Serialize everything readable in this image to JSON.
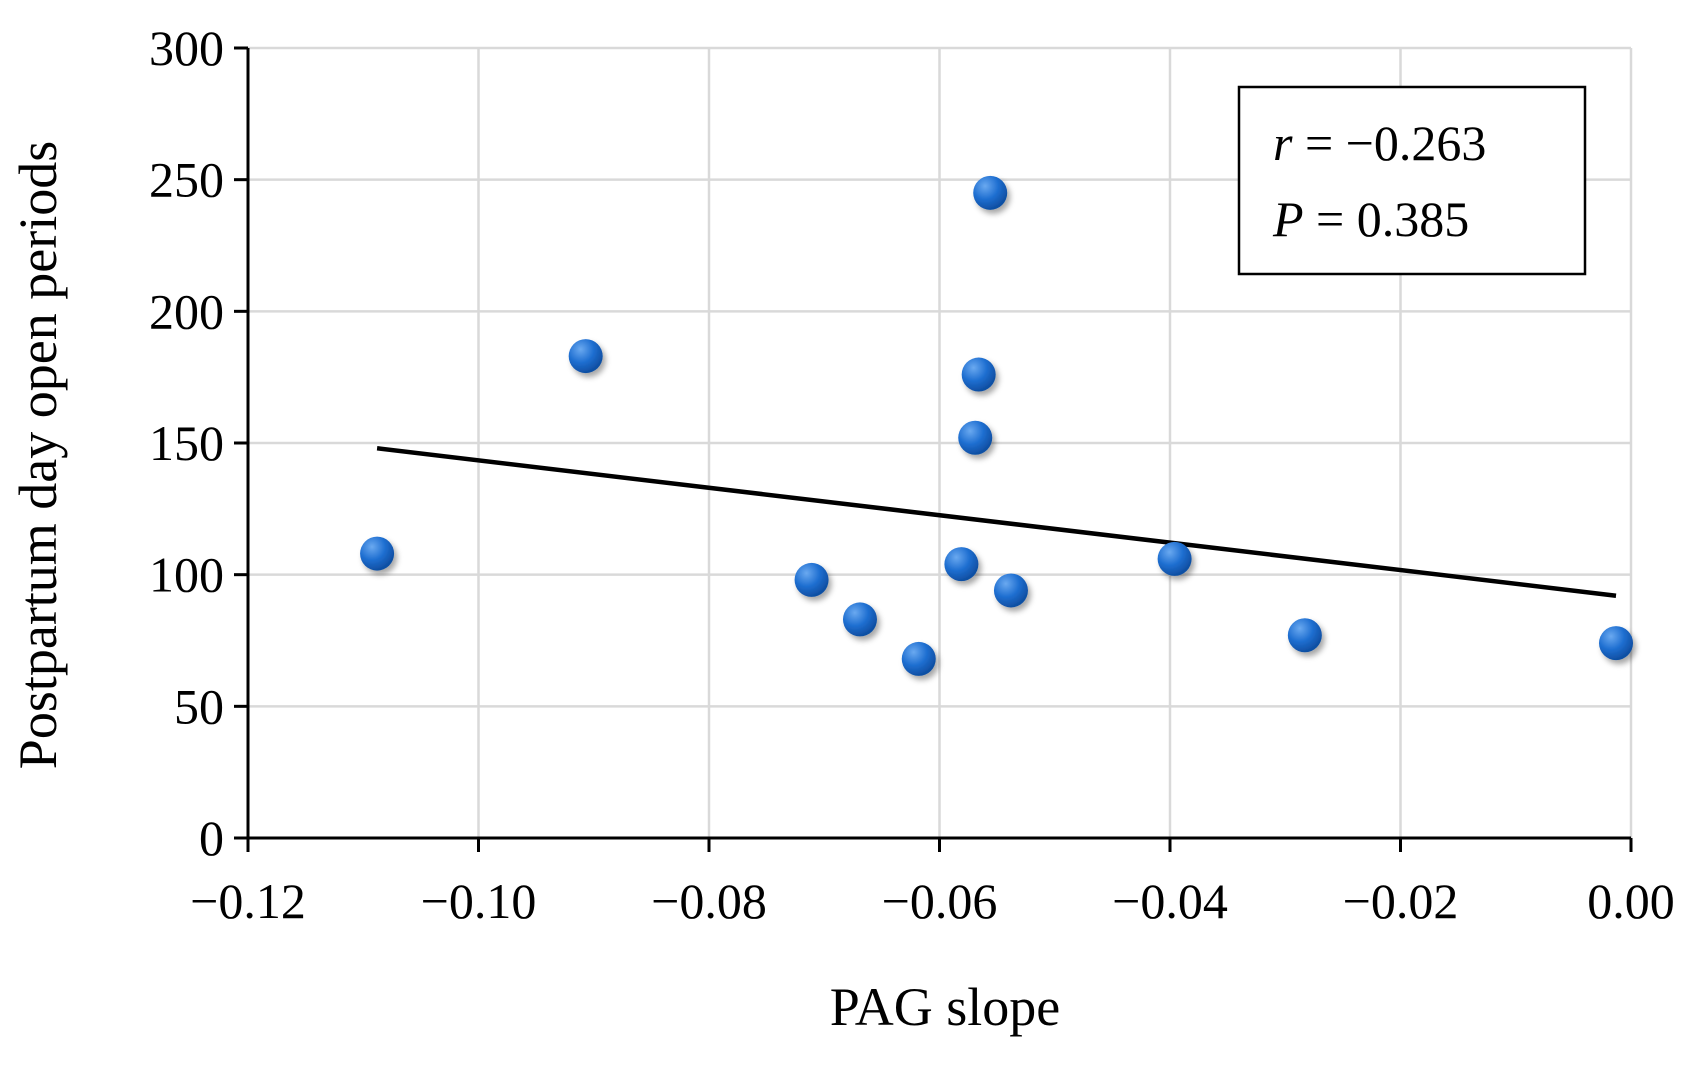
{
  "chart_data": {
    "type": "scatter",
    "title": "",
    "xlabel": "PAG slope",
    "ylabel": "Postpartum day open periods",
    "xlim": [
      -0.12,
      0.0
    ],
    "ylim": [
      0,
      300
    ],
    "xticks": [
      -0.12,
      -0.1,
      -0.08,
      -0.06,
      -0.04,
      -0.02,
      0.0
    ],
    "xtick_labels": [
      "−0.12",
      "−0.10",
      "−0.08",
      "−0.06",
      "−0.04",
      "−0.02",
      "0.00"
    ],
    "yticks": [
      0,
      50,
      100,
      150,
      200,
      250,
      300
    ],
    "ytick_labels": [
      "0",
      "50",
      "100",
      "150",
      "200",
      "250",
      "300"
    ],
    "grid": true,
    "series": [
      {
        "name": "points",
        "color": "#1f6fd1",
        "points": [
          {
            "x": -0.1088,
            "y": 108
          },
          {
            "x": -0.0907,
            "y": 183
          },
          {
            "x": -0.0711,
            "y": 98
          },
          {
            "x": -0.0669,
            "y": 83
          },
          {
            "x": -0.0618,
            "y": 68
          },
          {
            "x": -0.0581,
            "y": 104
          },
          {
            "x": -0.0566,
            "y": 176
          },
          {
            "x": -0.0569,
            "y": 152
          },
          {
            "x": -0.0556,
            "y": 245
          },
          {
            "x": -0.0538,
            "y": 94
          },
          {
            "x": -0.0396,
            "y": 106
          },
          {
            "x": -0.0283,
            "y": 77
          },
          {
            "x": -0.0013,
            "y": 74
          }
        ]
      }
    ],
    "trendline": {
      "color": "#000000",
      "x": [
        -0.1088,
        -0.0013
      ],
      "y": [
        148,
        92
      ]
    },
    "annotation": {
      "position": "top-right",
      "r_symbol": "r",
      "r_value": " = −0.263",
      "p_symbol": "P",
      "p_value": " = 0.385"
    }
  }
}
